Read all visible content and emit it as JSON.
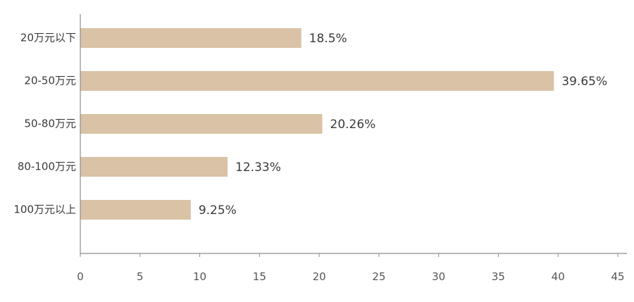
{
  "chart_data": {
    "type": "bar",
    "orientation": "horizontal",
    "categories": [
      "20万元以下",
      "20-50万元",
      "50-80万元",
      "80-100万元",
      "100万元以上"
    ],
    "values": [
      18.5,
      39.65,
      20.26,
      12.33,
      9.25
    ],
    "value_labels": [
      "18.5%",
      "39.65%",
      "20.26%",
      "12.33%",
      "9.25%"
    ],
    "xlim": [
      0,
      45
    ],
    "xticks": [
      0,
      5,
      10,
      15,
      20,
      25,
      30,
      35,
      40,
      45
    ],
    "grid": false,
    "legend": "none",
    "bar_color": "#d9c2a6"
  }
}
